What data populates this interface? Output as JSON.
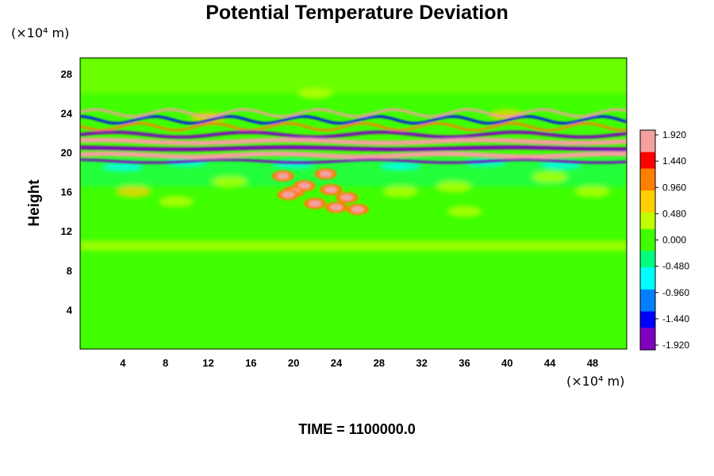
{
  "chart_data": {
    "type": "heatmap",
    "title": "Potential Temperature Deviation",
    "xlabel": "",
    "ylabel": "Height",
    "x_unit": "(×10⁴ m)",
    "y_unit": "(×10⁴ m)",
    "x_ticks": [
      4,
      8,
      12,
      16,
      20,
      24,
      28,
      32,
      36,
      40,
      44,
      48
    ],
    "y_ticks": [
      4,
      8,
      12,
      16,
      20,
      24,
      28
    ],
    "xlim": [
      0,
      51.2
    ],
    "ylim": [
      0,
      29.6
    ],
    "colorbar": {
      "labels": [
        "1.920",
        "1.440",
        "0.960",
        "0.480",
        "0.000",
        "-0.480",
        "-0.960",
        "-1.440",
        "-1.920"
      ],
      "values": [
        1.92,
        1.44,
        0.96,
        0.48,
        0.0,
        -0.48,
        -0.96,
        -1.44,
        -1.92
      ],
      "colors_high_to_low": [
        "#f4a0a0",
        "#ff0000",
        "#ff8000",
        "#ffd000",
        "#c0ff00",
        "#40ff00",
        "#00ff80",
        "#00ffff",
        "#0080ff",
        "#0000ff",
        "#8000c0"
      ]
    },
    "background_value": 0.05,
    "features": [
      {
        "desc": "primary alternating band",
        "y_center": 20.5,
        "value_sequence": [
          1.92,
          -1.92,
          1.92,
          -1.92
        ]
      },
      {
        "desc": "upper wavy band",
        "y_center": 23.2,
        "value_sequence": [
          1.6,
          -1.4,
          1.2
        ]
      },
      {
        "desc": "convective patch",
        "x_range": [
          17,
          27
        ],
        "y_range": [
          14,
          18
        ],
        "value": 1.6
      },
      {
        "desc": "weak layer",
        "y_center": 10.5,
        "value": 0.3
      }
    ]
  },
  "footer": {
    "text": "TIME = 1100000.0"
  }
}
